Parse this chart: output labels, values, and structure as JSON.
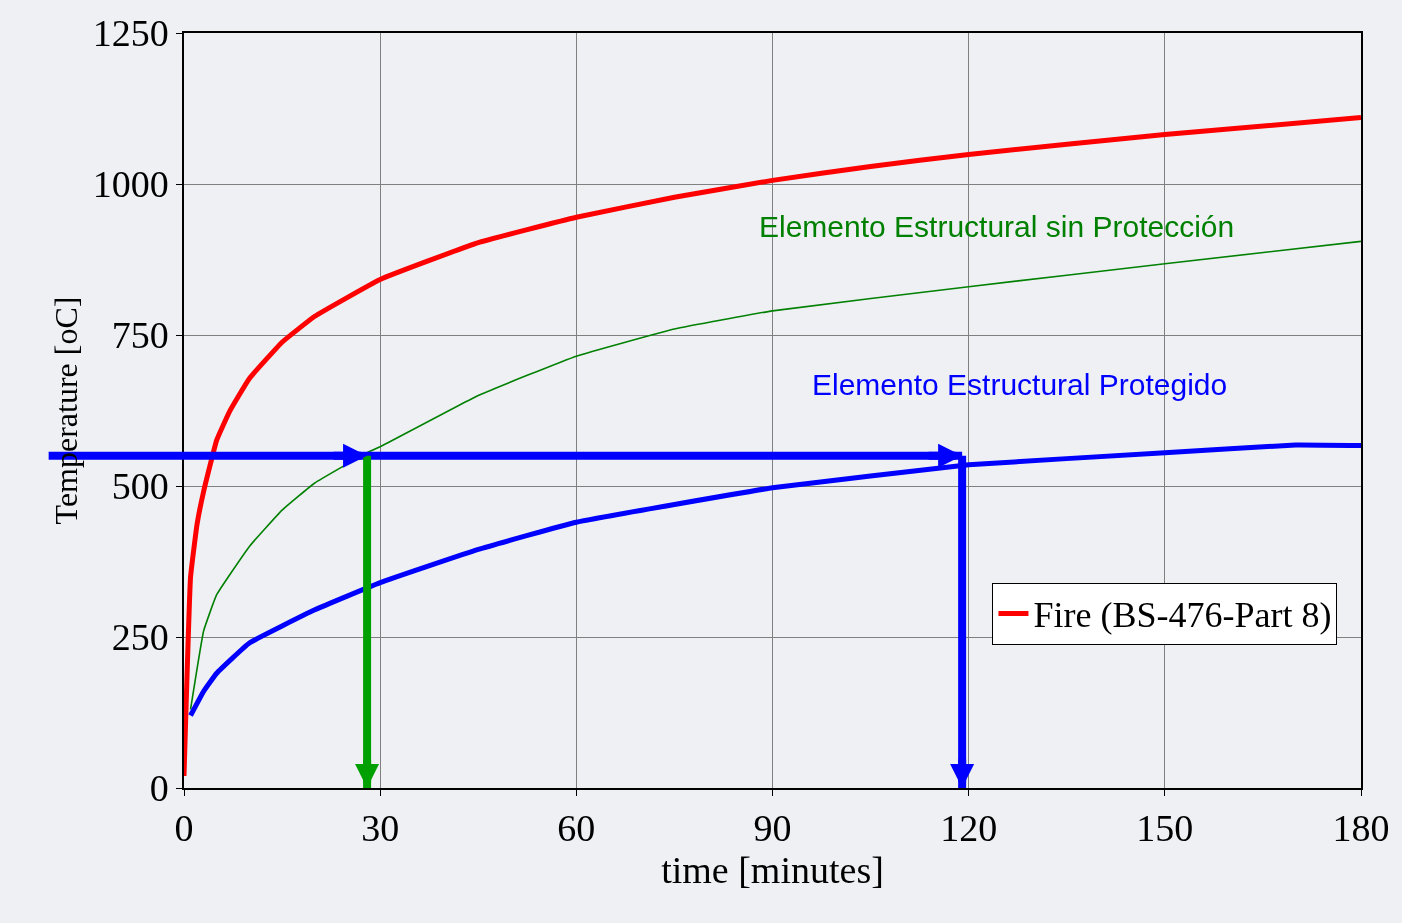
{
  "chart_data": {
    "type": "line",
    "xlabel": "time [minutes]",
    "ylabel": "Temperature [oC]",
    "xlim": [
      0,
      180
    ],
    "xticks": [
      0,
      30,
      60,
      90,
      120,
      150,
      180
    ],
    "ylim": [
      0,
      1250
    ],
    "yticks": [
      0,
      250,
      500,
      750,
      1000,
      1250
    ],
    "grid": true,
    "legend": "bottom right",
    "series": [
      {
        "name": "Fire (BS-476-Part 8)",
        "color": "#ff0000",
        "x": [
          0,
          1,
          2,
          3,
          5,
          7,
          10,
          15,
          20,
          30,
          45,
          60,
          75,
          90,
          105,
          120,
          150,
          180
        ],
        "values": [
          20,
          349,
          437,
          491,
          576,
          624,
          678,
          738,
          781,
          842,
          903,
          945,
          978,
          1006,
          1029,
          1049,
          1082,
          1110
        ]
      },
      {
        "color": "#008000",
        "x": [
          1,
          3,
          5,
          10,
          15,
          20,
          28,
          30,
          45,
          60,
          75,
          90,
          120,
          150,
          180
        ],
        "values": [
          130,
          260,
          320,
          400,
          460,
          505,
          555,
          565,
          650,
          715,
          760,
          790,
          830,
          868,
          905
        ]
      },
      {
        "color": "#0000ff",
        "x": [
          1,
          3,
          5,
          10,
          20,
          30,
          45,
          60,
          90,
          120,
          150,
          170,
          180
        ],
        "values": [
          120,
          160,
          190,
          240,
          295,
          340,
          395,
          440,
          497,
          535,
          555,
          568,
          567
        ]
      }
    ],
    "ref_lines": [
      {
        "axis": "y",
        "value": 550,
        "color": "#0000ff"
      },
      {
        "axis": "x",
        "value": 28,
        "color": "#00a000"
      },
      {
        "axis": "x",
        "value": 119,
        "color": "#0000ff"
      }
    ],
    "annotations": [
      "Elemento Estructural sin Protección",
      "Elemento Estructural Protegido"
    ]
  }
}
